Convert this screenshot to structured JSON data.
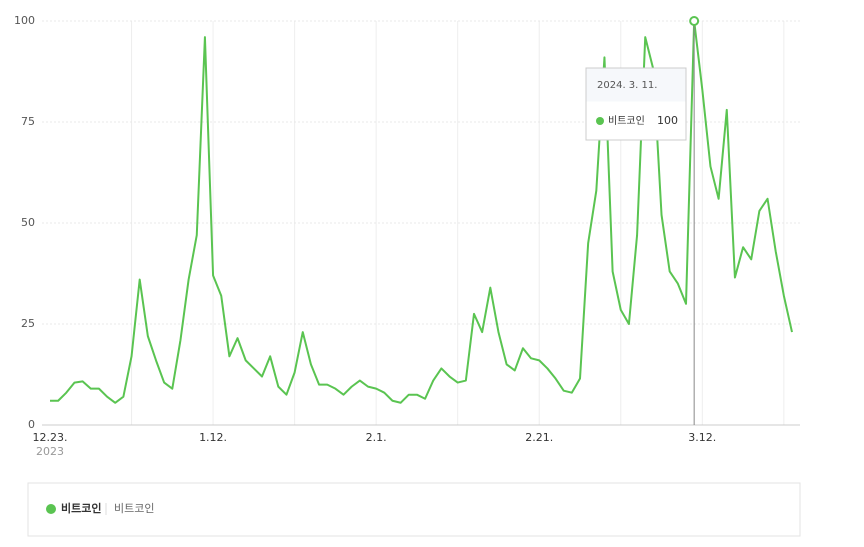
{
  "chart_data": {
    "type": "line",
    "categories": [
      "12.23.",
      null,
      null,
      null,
      null,
      null,
      null,
      null,
      null,
      null,
      null,
      null,
      null,
      null,
      null,
      null,
      null,
      null,
      null,
      null,
      "1.12.",
      null,
      null,
      null,
      null,
      null,
      null,
      null,
      null,
      null,
      null,
      null,
      null,
      null,
      null,
      null,
      null,
      null,
      null,
      null,
      "2.1.",
      null,
      null,
      null,
      null,
      null,
      null,
      null,
      null,
      null,
      null,
      null,
      null,
      null,
      null,
      null,
      null,
      null,
      null,
      null,
      "2.21.",
      null,
      null,
      null,
      null,
      null,
      null,
      null,
      null,
      null,
      null,
      null,
      null,
      null,
      null,
      null,
      null,
      null,
      null,
      null,
      "3.12.",
      null,
      null,
      null,
      null,
      null,
      null,
      null,
      null,
      null,
      null,
      null
    ],
    "first_year": "2023",
    "series": [
      {
        "name": "비트코인",
        "color": "#5ac451",
        "values": [
          6,
          6,
          8,
          10.5,
          10.8,
          9,
          9,
          7,
          5.5,
          7,
          17,
          36,
          22,
          16,
          10.5,
          9,
          21,
          36,
          47,
          96,
          37,
          32,
          17,
          21.5,
          16,
          14,
          12,
          17,
          9.5,
          7.5,
          13,
          23,
          15,
          10,
          10,
          9,
          7.5,
          9.5,
          11,
          9.5,
          9,
          8,
          6,
          5.5,
          7.5,
          7.5,
          6.5,
          11,
          14,
          12,
          10.5,
          11,
          27.5,
          23,
          34,
          23,
          15,
          13.5,
          19,
          16.5,
          16,
          14,
          11.5,
          8.5,
          8,
          11.5,
          45,
          58,
          91,
          38,
          28.5,
          25,
          47,
          96,
          88,
          52,
          38,
          35,
          30,
          100,
          83,
          64,
          56,
          78,
          36.5,
          44,
          41,
          53,
          56,
          43,
          32,
          23
        ]
      }
    ],
    "ylim": [
      0,
      100
    ],
    "yticks": [
      0,
      25,
      50,
      75,
      100
    ],
    "grid": true,
    "tooltip": {
      "date": "2024. 3. 11.",
      "index": 79
    },
    "legend_keywords": "비트코인"
  }
}
